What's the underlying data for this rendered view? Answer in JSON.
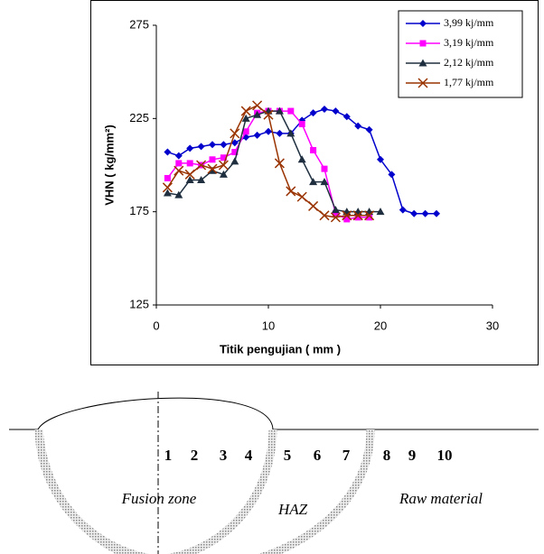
{
  "chart_data": {
    "type": "line",
    "x_label": "Titik pengujian ( mm )",
    "y_label": "VHN ( kg/mm²)",
    "x": [
      1,
      2,
      3,
      4,
      5,
      6,
      7,
      8,
      9,
      10,
      11,
      12,
      13,
      14,
      15,
      16,
      17,
      18,
      19,
      20,
      21,
      22,
      23,
      24,
      25
    ],
    "series": [
      {
        "name": "3,99 kj/mm",
        "color": "#0000cc",
        "marker": "diamond",
        "values": [
          207,
          205,
          209,
          210,
          211,
          211,
          212,
          215,
          216,
          218,
          217,
          217,
          224,
          228,
          230,
          229,
          226,
          221,
          219,
          203,
          195,
          176,
          174,
          174,
          174
        ]
      },
      {
        "name": "3,19 kj/mm",
        "color": "#ff00ff",
        "marker": "square",
        "values": [
          193,
          201,
          201,
          200,
          203,
          204,
          207,
          218,
          228,
          229,
          229,
          229,
          222,
          208,
          198,
          174,
          171,
          172,
          172,
          null,
          null,
          null,
          null,
          null,
          null
        ]
      },
      {
        "name": "2,12 kj/mm",
        "color": "#1f2f3f",
        "marker": "triangle",
        "values": [
          185,
          184,
          192,
          192,
          197,
          195,
          202,
          225,
          227,
          229,
          229,
          217,
          203,
          191,
          191,
          176,
          175,
          175,
          175,
          175,
          null,
          null,
          null,
          null,
          null
        ]
      },
      {
        "name": "1,77 kj/mm",
        "color": "#993300",
        "marker": "x",
        "values": [
          188,
          197,
          195,
          200,
          198,
          200,
          217,
          229,
          232,
          227,
          201,
          186,
          183,
          178,
          173,
          172,
          173,
          173,
          173,
          null,
          null,
          null,
          null,
          null,
          null
        ]
      }
    ],
    "xlim": [
      0,
      30
    ],
    "ylim": [
      125,
      275
    ],
    "xticks": [
      0,
      10,
      20,
      30
    ],
    "yticks": [
      125,
      175,
      225,
      275
    ],
    "legend": "upper right"
  },
  "diagram": {
    "numbers": [
      "1",
      "2",
      "3",
      "4",
      "5",
      "6",
      "7",
      "8",
      "9",
      "10"
    ],
    "zones": [
      "Fusion zone",
      "HAZ",
      "Raw material"
    ]
  }
}
